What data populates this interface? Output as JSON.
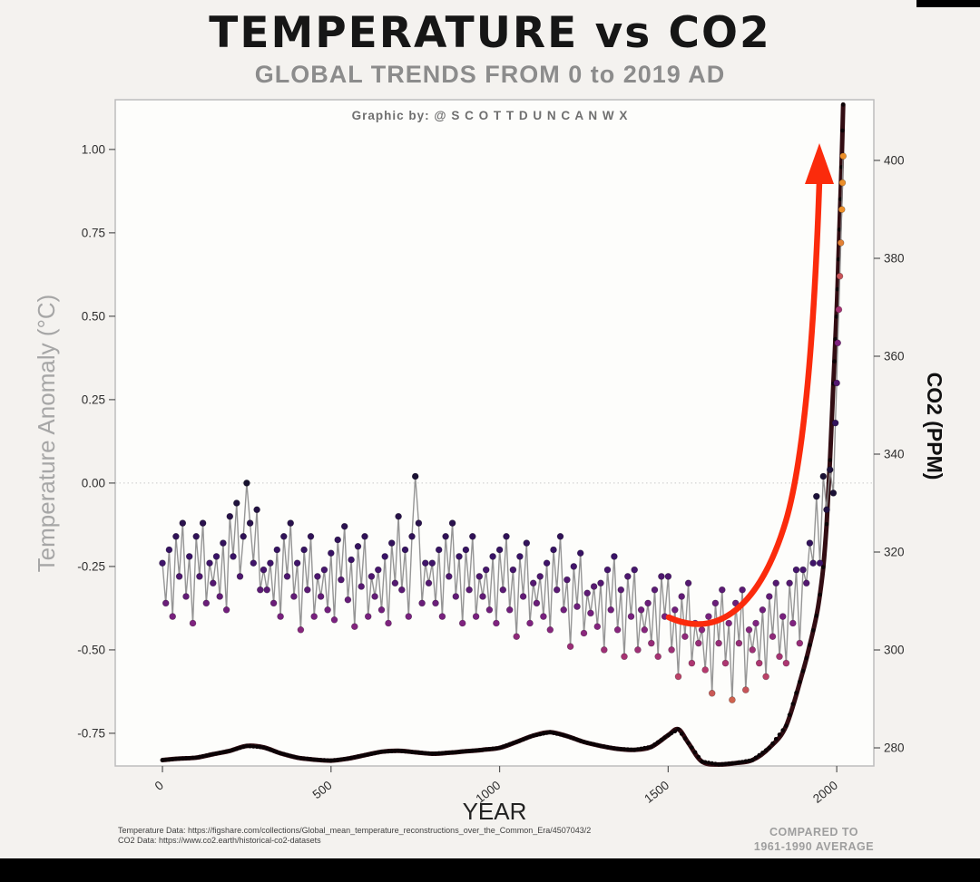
{
  "page": {
    "background": "#f4f2ef",
    "bottom_bar_color": "#000000"
  },
  "header": {
    "title": "TEMPERATURE vs CO2",
    "subtitle": "GLOBAL TRENDS FROM 0 to 2019 AD",
    "credit": "Graphic by: @ S C O T T D U N C A N W X"
  },
  "footer": {
    "source_line1": "Temperature Data: https://figshare.com/collections/Global_mean_temperature_reconstructions_over_the_Common_Era/4507043/2",
    "source_line2": "CO2 Data: https://www.co2.earth/historical-co2-datasets",
    "note_line1": "COMPARED TO",
    "note_line2": "1961-1990 AVERAGE"
  },
  "chart_data": {
    "type": "line",
    "title": "TEMPERATURE vs CO2",
    "subtitle": "GLOBAL TRENDS FROM 0 to 2019 AD",
    "xlabel": "YEAR",
    "ylabel_left": "Temperature Anomaly (°C)",
    "ylabel_right": "CO2 (PPM)",
    "grid": "zero-line-only",
    "x_ticks": [
      0,
      500,
      1000,
      1500,
      2000
    ],
    "x_range": [
      -140,
      2110
    ],
    "temp_axis": {
      "ticks": [
        1.0,
        0.75,
        0.5,
        0.25,
        0.0,
        -0.25,
        -0.5,
        -0.75
      ],
      "range": [
        -0.848,
        1.149
      ]
    },
    "co2_axis": {
      "ticks": [
        400,
        380,
        360,
        340,
        320,
        300,
        280
      ],
      "range": [
        276.3,
        412.4
      ]
    },
    "zero_line": 0.0,
    "series": [
      {
        "name": "Temperature Anomaly",
        "style": "scatter-line",
        "line_color": "#8f8f8f",
        "colormap": {
          "domain_abs": 0.75,
          "stops": [
            [
              0,
              "#17112f"
            ],
            [
              0.3,
              "#3a1367"
            ],
            [
              0.55,
              "#7c2280"
            ],
            [
              0.75,
              "#b63a6e"
            ],
            [
              1,
              "#ec8f2a"
            ]
          ]
        },
        "year_start": 0,
        "year_step": 10,
        "values": [
          -0.24,
          -0.36,
          -0.2,
          -0.4,
          -0.16,
          -0.28,
          -0.12,
          -0.34,
          -0.22,
          -0.42,
          -0.16,
          -0.28,
          -0.12,
          -0.36,
          -0.24,
          -0.3,
          -0.22,
          -0.34,
          -0.18,
          -0.38,
          -0.1,
          -0.22,
          -0.06,
          -0.28,
          -0.16,
          0.0,
          -0.12,
          -0.24,
          -0.08,
          -0.32,
          -0.26,
          -0.32,
          -0.24,
          -0.36,
          -0.2,
          -0.4,
          -0.16,
          -0.28,
          -0.12,
          -0.34,
          -0.24,
          -0.44,
          -0.2,
          -0.32,
          -0.16,
          -0.4,
          -0.28,
          -0.34,
          -0.26,
          -0.38,
          -0.21,
          -0.41,
          -0.17,
          -0.29,
          -0.13,
          -0.35,
          -0.23,
          -0.43,
          -0.19,
          -0.31,
          -0.16,
          -0.4,
          -0.28,
          -0.34,
          -0.26,
          -0.38,
          -0.22,
          -0.42,
          -0.18,
          -0.3,
          -0.1,
          -0.32,
          -0.2,
          -0.4,
          -0.16,
          0.02,
          -0.12,
          -0.36,
          -0.24,
          -0.3,
          -0.24,
          -0.36,
          -0.2,
          -0.4,
          -0.16,
          -0.28,
          -0.12,
          -0.34,
          -0.22,
          -0.42,
          -0.2,
          -0.32,
          -0.16,
          -0.4,
          -0.28,
          -0.34,
          -0.26,
          -0.38,
          -0.22,
          -0.42,
          -0.2,
          -0.32,
          -0.16,
          -0.38,
          -0.26,
          -0.46,
          -0.22,
          -0.34,
          -0.18,
          -0.42,
          -0.3,
          -0.36,
          -0.28,
          -0.4,
          -0.24,
          -0.44,
          -0.2,
          -0.32,
          -0.16,
          -0.38,
          -0.29,
          -0.49,
          -0.25,
          -0.37,
          -0.21,
          -0.45,
          -0.33,
          -0.39,
          -0.31,
          -0.43,
          -0.3,
          -0.5,
          -0.26,
          -0.38,
          -0.22,
          -0.44,
          -0.32,
          -0.52,
          -0.28,
          -0.4,
          -0.26,
          -0.5,
          -0.38,
          -0.44,
          -0.36,
          -0.48,
          -0.32,
          -0.52,
          -0.28,
          -0.4,
          -0.28,
          -0.5,
          -0.38,
          -0.58,
          -0.34,
          -0.46,
          -0.3,
          -0.54,
          -0.42,
          -0.48,
          -0.44,
          -0.56,
          -0.4,
          -0.63,
          -0.36,
          -0.48,
          -0.32,
          -0.54,
          -0.42,
          -0.65,
          -0.36,
          -0.48,
          -0.32,
          -0.62,
          -0.44,
          -0.5,
          -0.42,
          -0.54,
          -0.38,
          -0.58,
          -0.34,
          -0.46,
          -0.3,
          -0.52,
          -0.4,
          -0.54,
          -0.3,
          -0.42,
          -0.26,
          -0.48,
          -0.26,
          -0.3,
          -0.18,
          -0.24,
          -0.04,
          -0.24,
          0.02,
          -0.08,
          0.04,
          -0.03
        ],
        "recent": {
          "years": [
            1996,
            2000,
            2003,
            2006,
            2009,
            2012,
            2015,
            2017,
            2019
          ],
          "values": [
            0.18,
            0.3,
            0.42,
            0.52,
            0.62,
            0.72,
            0.82,
            0.9,
            0.98
          ]
        }
      },
      {
        "name": "CO2",
        "style": "smooth-line",
        "line_color": "#330d13",
        "dot_color": "#0b0306",
        "points": [
          [
            0,
            277.5
          ],
          [
            50,
            277.8
          ],
          [
            100,
            278.0
          ],
          [
            150,
            278.7
          ],
          [
            200,
            279.4
          ],
          [
            250,
            280.4
          ],
          [
            300,
            280.1
          ],
          [
            350,
            278.9
          ],
          [
            400,
            278.0
          ],
          [
            450,
            277.6
          ],
          [
            500,
            277.4
          ],
          [
            550,
            277.8
          ],
          [
            600,
            278.5
          ],
          [
            650,
            279.2
          ],
          [
            700,
            279.4
          ],
          [
            750,
            279.1
          ],
          [
            800,
            278.8
          ],
          [
            850,
            279.0
          ],
          [
            900,
            279.3
          ],
          [
            950,
            279.6
          ],
          [
            1000,
            280.0
          ],
          [
            1050,
            281.2
          ],
          [
            1100,
            282.5
          ],
          [
            1150,
            283.2
          ],
          [
            1200,
            282.4
          ],
          [
            1250,
            281.2
          ],
          [
            1300,
            280.4
          ],
          [
            1350,
            279.8
          ],
          [
            1400,
            279.6
          ],
          [
            1450,
            280.2
          ],
          [
            1500,
            282.6
          ],
          [
            1530,
            283.8
          ],
          [
            1560,
            281.0
          ],
          [
            1600,
            277.2
          ],
          [
            1650,
            276.6
          ],
          [
            1700,
            276.9
          ],
          [
            1750,
            277.5
          ],
          [
            1800,
            280.0
          ],
          [
            1850,
            284.5
          ],
          [
            1900,
            295.7
          ],
          [
            1920,
            301.0
          ],
          [
            1940,
            307.0
          ],
          [
            1950,
            311.3
          ],
          [
            1960,
            316.9
          ],
          [
            1970,
            325.7
          ],
          [
            1980,
            338.8
          ],
          [
            1990,
            354.4
          ],
          [
            2000,
            369.6
          ],
          [
            2005,
            379.8
          ],
          [
            2010,
            389.9
          ],
          [
            2015,
            400.8
          ],
          [
            2019,
            411.4
          ]
        ]
      }
    ],
    "annotations": [
      {
        "type": "arrow",
        "color": "#fb2b0c",
        "meaning": "recent rapid CO2 rise"
      }
    ],
    "legend": "none"
  }
}
